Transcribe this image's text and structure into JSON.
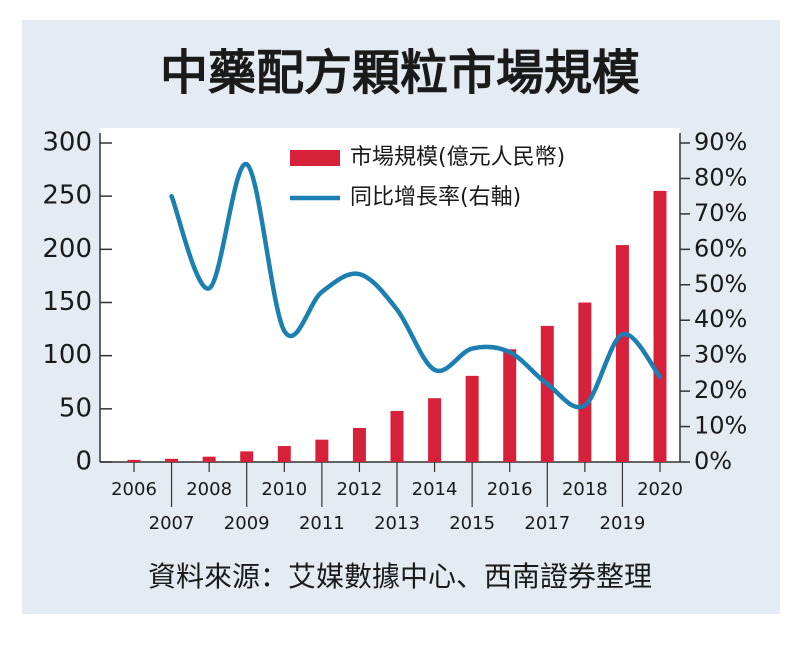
{
  "chart_data": {
    "type": "bar",
    "title": "中藥配方顆粒市場規模",
    "source": "資料來源：艾媒數據中心、西南證券整理",
    "categories": [
      "2006",
      "2007",
      "2008",
      "2009",
      "2010",
      "2011",
      "2012",
      "2013",
      "2014",
      "2015",
      "2016",
      "2017",
      "2018",
      "2019",
      "2020"
    ],
    "series": [
      {
        "name": "市場規模(億元人民幣)",
        "color": "#d7213a",
        "type": "bar",
        "values": [
          2,
          3,
          5,
          10,
          15,
          21,
          32,
          48,
          60,
          81,
          106,
          128,
          150,
          204,
          255
        ]
      },
      {
        "name": "同比增長率(右軸)",
        "color": "#1c7fb1",
        "type": "line",
        "axis": "y2",
        "values": [
          null,
          75,
          49,
          84,
          37,
          48,
          53,
          43,
          26,
          32,
          31,
          22,
          16,
          36,
          24
        ]
      }
    ],
    "ylim": [
      0,
      300
    ],
    "yticks": [
      0,
      50,
      100,
      150,
      200,
      250,
      300
    ],
    "y2lim": [
      0,
      90
    ],
    "y2ticks": [
      {
        "value": 0,
        "label": "0%"
      },
      {
        "value": 10,
        "label": "10%"
      },
      {
        "value": 20,
        "label": "20%"
      },
      {
        "value": 30,
        "label": "30%"
      },
      {
        "value": 40,
        "label": "40%"
      },
      {
        "value": 50,
        "label": "50%"
      },
      {
        "value": 60,
        "label": "60%"
      },
      {
        "value": 70,
        "label": "70%"
      },
      {
        "value": 80,
        "label": "80%"
      },
      {
        "value": 90,
        "label": "90%"
      }
    ],
    "legend": "top"
  }
}
